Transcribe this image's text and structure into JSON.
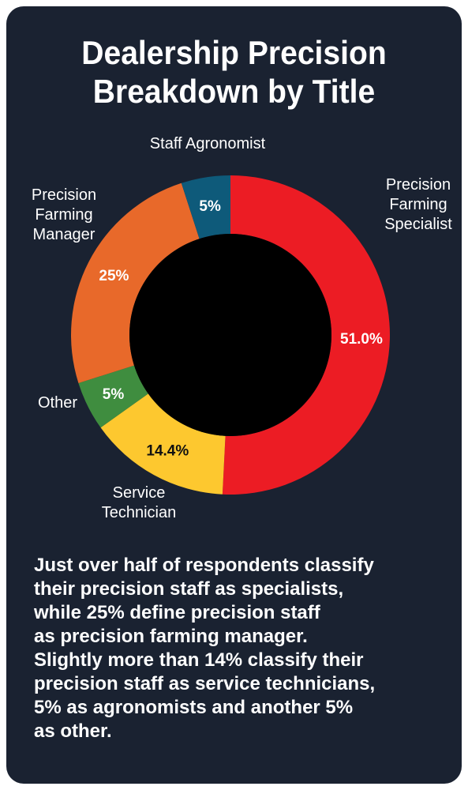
{
  "title": "Dealership Precision\nBreakdown by Title",
  "description": "Just over half of respondents classify\ntheir precision staff as specialists,\nwhile 25% define precision staff\nas precision farming manager.\nSlightly more than 14% classify their\nprecision staff as service technicians,\n5% as agronomists and another 5%\nas other.",
  "colors": {
    "background": "#1a2231",
    "hole": "#000000",
    "text": "#ffffff",
    "dark_label": "#111111"
  },
  "chart_data": {
    "type": "pie",
    "donut": true,
    "title": "Dealership Precision Breakdown by Title",
    "start_angle_deg": 0,
    "direction": "clockwise",
    "slices": [
      {
        "label": "Precision Farming Specialist",
        "label_lines": [
          "Precision",
          "Farming",
          "Specialist"
        ],
        "value": 51.0,
        "value_label": "51.0%",
        "color": "#ec1c24",
        "value_text_color": "#ffffff"
      },
      {
        "label": "Service Technician",
        "label_lines": [
          "Service",
          "Technician"
        ],
        "value": 14.4,
        "value_label": "14.4%",
        "color": "#fdc82f",
        "value_text_color": "#111111"
      },
      {
        "label": "Other",
        "label_lines": [
          "Other"
        ],
        "value": 5,
        "value_label": "5%",
        "color": "#3f8d3f",
        "value_text_color": "#ffffff"
      },
      {
        "label": "Precision Farming Manager",
        "label_lines": [
          "Precision",
          "Farming",
          "Manager"
        ],
        "value": 25,
        "value_label": "25%",
        "color": "#e8692a",
        "value_text_color": "#ffffff"
      },
      {
        "label": "Staff Agronomist",
        "label_lines": [
          "Staff Agronomist"
        ],
        "value": 5,
        "value_label": "5%",
        "color": "#0e5a7a",
        "value_text_color": "#ffffff"
      }
    ]
  }
}
